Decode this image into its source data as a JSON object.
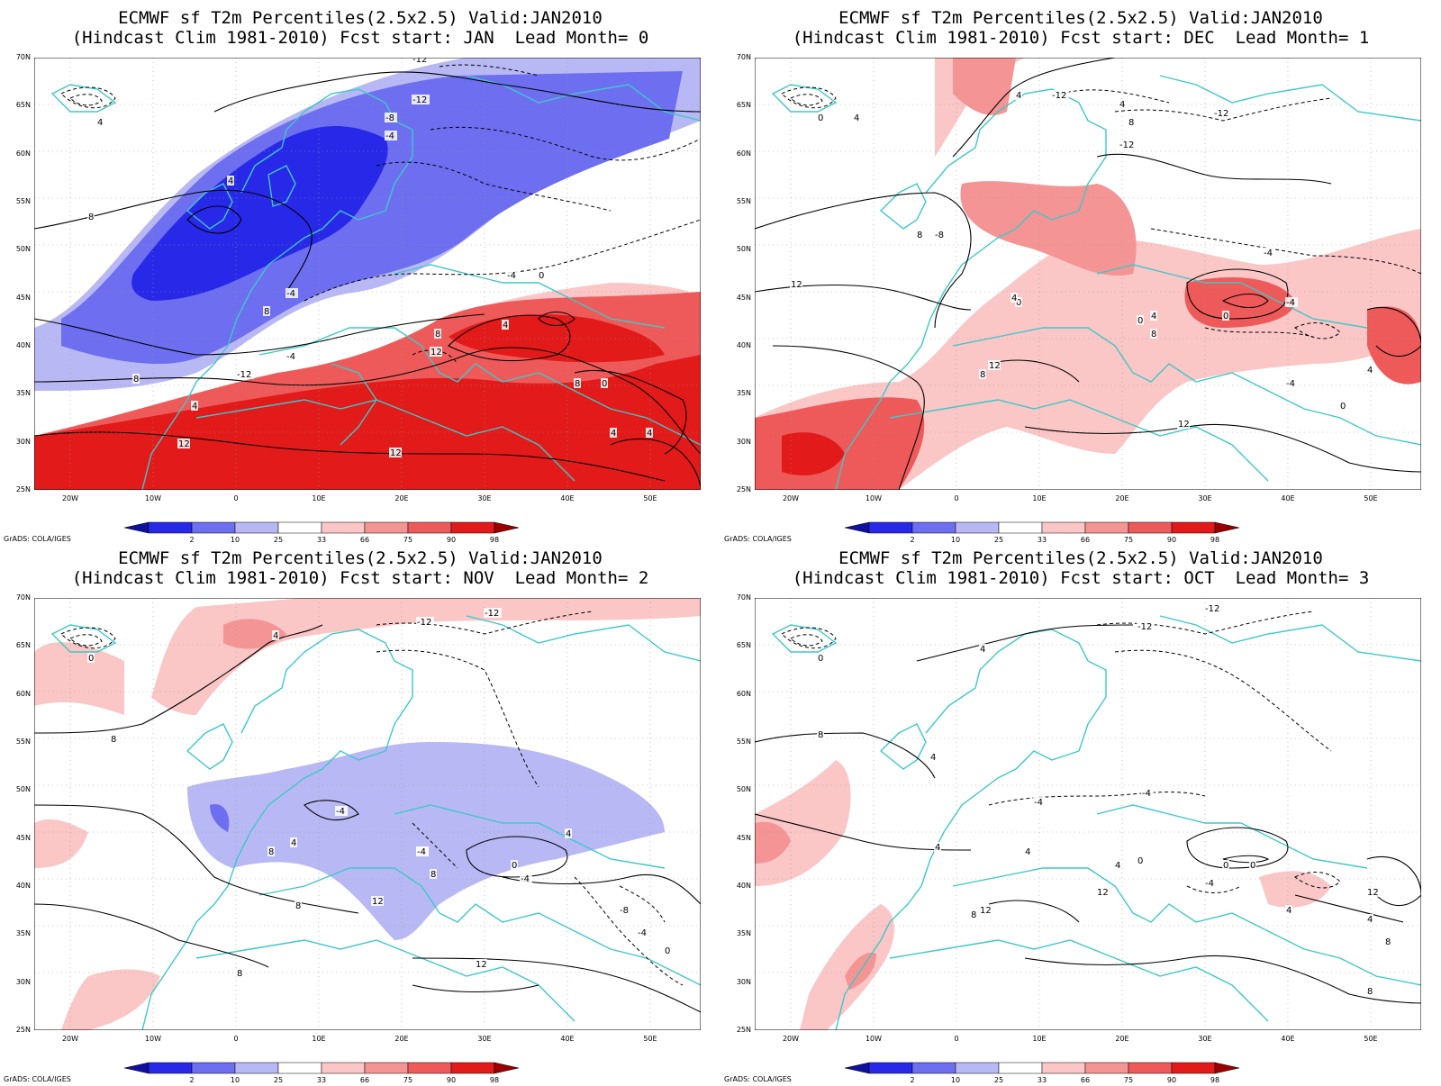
{
  "app": "GrADS",
  "credit": "GrADS: COLA/IGES",
  "colors": {
    "ocean_bg": "#ffffff",
    "coast": "#3ec8c8",
    "contour": "#000000",
    "levels": [
      "#1010a0",
      "#2828e8",
      "#6e6ef0",
      "#b8b8f4",
      "#ffffff",
      "#fac6c6",
      "#f49494",
      "#ee5a5a",
      "#e21a1a",
      "#9a0000"
    ]
  },
  "colorbar": {
    "ticks": [
      "2",
      "10",
      "25",
      "33",
      "66",
      "75",
      "90",
      "98"
    ]
  },
  "axes": {
    "lat_labels": [
      "70N",
      "65N",
      "60N",
      "55N",
      "50N",
      "45N",
      "40N",
      "35N",
      "30N",
      "25N"
    ],
    "lon_labels": [
      "20W",
      "10W",
      "0",
      "10E",
      "20E",
      "30E",
      "40E",
      "50E"
    ]
  },
  "panels": [
    {
      "title1": "ECMWF sf T2m Percentiles(2.5x2.5) Valid:JAN2010",
      "title2": "(Hindcast Clim 1981-2010) Fcst start: JAN  Lead Month= 0",
      "contour_labels": [
        "-12",
        "-8",
        "-4",
        "-4",
        "4",
        "8",
        "4",
        "-4",
        "8",
        "4",
        "-12",
        "0",
        "-4",
        "4",
        "12",
        "8",
        "8",
        "8",
        "0",
        "4",
        "12",
        "12",
        "-12",
        "4"
      ]
    },
    {
      "title1": "ECMWF sf T2m Percentiles(2.5x2.5) Valid:JAN2010",
      "title2": "(Hindcast Clim 1981-2010) Fcst start: DEC  Lead Month= 1",
      "contour_labels": [
        "0",
        "4",
        "4",
        "-12",
        "-12",
        "4",
        "8",
        "-8",
        "-12",
        "-4",
        "8",
        "12",
        "0",
        "4",
        "0",
        "-4",
        "-4",
        "0",
        "4",
        "8",
        "12",
        "12",
        "8",
        "0",
        "4"
      ]
    },
    {
      "title1": "ECMWF sf T2m Percentiles(2.5x2.5) Valid:JAN2010",
      "title2": "(Hindcast Clim 1981-2010) Fcst start: NOV  Lead Month= 2",
      "contour_labels": [
        "0",
        "4",
        "-12",
        "-12",
        "8",
        "-4",
        "4",
        "-4",
        "8",
        "8",
        "12",
        "-4",
        "0",
        "-4",
        "4",
        "8",
        "-8",
        "-4",
        "0",
        "12",
        "8"
      ]
    },
    {
      "title1": "ECMWF sf T2m Percentiles(2.5x2.5) Valid:JAN2010",
      "title2": "(Hindcast Clim 1981-2010) Fcst start: OCT  Lead Month= 3",
      "contour_labels": [
        "0",
        "4",
        "-12",
        "-12",
        "4",
        "8",
        "4",
        "-4",
        "4",
        "12",
        "4",
        "0",
        "-4",
        "12",
        "8",
        "-4",
        "0",
        "4",
        "12",
        "8",
        "0",
        "8",
        "4"
      ]
    }
  ]
}
